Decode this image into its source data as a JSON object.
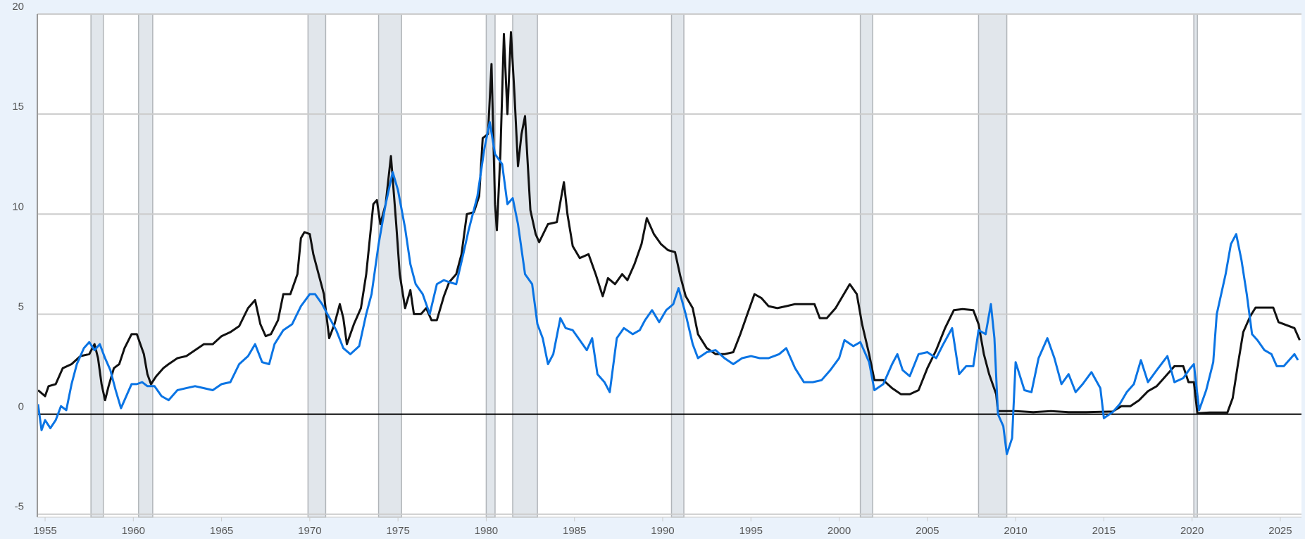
{
  "chart_data": {
    "type": "line",
    "title": "",
    "xlabel": "",
    "ylabel": "",
    "xlim": [
      1954.56,
      2026.2
    ],
    "ylim": [
      -5.15,
      20
    ],
    "grid": true,
    "legend": "none",
    "x_ticks": [
      "1955",
      "1960",
      "1965",
      "1970",
      "1975",
      "1980",
      "1985",
      "1990",
      "1995",
      "2000",
      "2005",
      "2010",
      "2015",
      "2020",
      "2025"
    ],
    "y_ticks": [
      "-5",
      "0",
      "5",
      "10",
      "15",
      "20"
    ],
    "colors": {
      "background": "#eaf2fb",
      "plot": "#ffffff",
      "grid": "#cccccc",
      "recession": "#e1e6eb",
      "zero_line": "#000000"
    },
    "recessions": [
      [
        1957.6,
        1958.3
      ],
      [
        1960.3,
        1961.1
      ],
      [
        1969.9,
        1970.9
      ],
      [
        1973.9,
        1975.2
      ],
      [
        1980.0,
        1980.5
      ],
      [
        1981.5,
        1982.9
      ],
      [
        1990.5,
        1991.2
      ],
      [
        2001.2,
        2001.9
      ],
      [
        2007.9,
        2009.5
      ],
      [
        2020.1,
        2020.3
      ]
    ],
    "series": [
      {
        "color": "#111111",
        "x": [
          1954.6,
          1955.0,
          1955.2,
          1955.6,
          1956,
          1956.5,
          1957,
          1957.5,
          1957.8,
          1958.0,
          1958.2,
          1958.4,
          1958.6,
          1958.9,
          1959.2,
          1959.5,
          1959.9,
          1960.2,
          1960.4,
          1960.6,
          1960.8,
          1961.0,
          1961.3,
          1961.7,
          1962,
          1962.5,
          1963,
          1963.5,
          1964,
          1964.5,
          1965,
          1965.5,
          1966,
          1966.5,
          1966.9,
          1967.2,
          1967.5,
          1967.8,
          1968.2,
          1968.5,
          1968.9,
          1969.3,
          1969.5,
          1969.7,
          1970.0,
          1970.2,
          1970.5,
          1970.8,
          1971.1,
          1971.4,
          1971.7,
          1971.9,
          1972.1,
          1972.5,
          1972.9,
          1973.2,
          1973.6,
          1973.8,
          1974.0,
          1974.3,
          1974.6,
          1974.9,
          1975.1,
          1975.4,
          1975.7,
          1975.9,
          1976.3,
          1976.6,
          1976.9,
          1977.2,
          1977.6,
          1977.9,
          1978.3,
          1978.6,
          1978.9,
          1979.3,
          1979.6,
          1979.8,
          1980.1,
          1980.3,
          1980.5,
          1980.6,
          1980.8,
          1981.0,
          1981.2,
          1981.4,
          1981.6,
          1981.8,
          1982.0,
          1982.2,
          1982.5,
          1982.8,
          1983.0,
          1983.5,
          1984.0,
          1984.4,
          1984.6,
          1984.9,
          1985.3,
          1985.8,
          1986.2,
          1986.6,
          1986.9,
          1987.3,
          1987.7,
          1988.0,
          1988.4,
          1988.8,
          1989.1,
          1989.5,
          1989.9,
          1990.3,
          1990.7,
          1991.0,
          1991.3,
          1991.7,
          1992.0,
          1992.5,
          1993,
          1993.5,
          1994.0,
          1994.4,
          1994.8,
          1995.2,
          1995.6,
          1996.0,
          1996.5,
          1997,
          1997.5,
          1998.0,
          1998.6,
          1998.9,
          1999.3,
          1999.8,
          2000.2,
          2000.6,
          2001.0,
          2001.3,
          2001.7,
          2002.0,
          2002.5,
          2003.0,
          2003.5,
          2004,
          2004.5,
          2005.0,
          2005.5,
          2006.0,
          2006.5,
          2007,
          2007.6,
          2007.9,
          2008.2,
          2008.5,
          2008.9,
          2009.0,
          2010,
          2011,
          2012,
          2013,
          2014,
          2015.5,
          2016,
          2016.5,
          2017,
          2017.5,
          2018,
          2018.5,
          2019.0,
          2019.5,
          2019.8,
          2020.1,
          2020.3,
          2021,
          2022.0,
          2022.3,
          2022.6,
          2022.9,
          2023.3,
          2023.6,
          2024.6,
          2024.9,
          2025.8,
          2026.1
        ],
        "values": [
          1.2,
          0.9,
          1.4,
          1.5,
          2.3,
          2.5,
          2.9,
          3.0,
          3.5,
          2.8,
          1.5,
          0.7,
          1.4,
          2.3,
          2.5,
          3.3,
          4.0,
          4.0,
          3.5,
          3.0,
          2.0,
          1.5,
          1.9,
          2.3,
          2.5,
          2.8,
          2.9,
          3.2,
          3.5,
          3.5,
          3.9,
          4.1,
          4.4,
          5.3,
          5.7,
          4.5,
          3.9,
          4.0,
          4.7,
          6.0,
          6.0,
          7.0,
          8.8,
          9.1,
          9.0,
          8.0,
          7.0,
          6.0,
          3.8,
          4.5,
          5.5,
          4.8,
          3.5,
          4.5,
          5.3,
          7.0,
          10.5,
          10.7,
          9.5,
          10.5,
          12.9,
          9.5,
          7.0,
          5.3,
          6.2,
          5.0,
          5.0,
          5.3,
          4.7,
          4.7,
          5.9,
          6.6,
          7.0,
          8.0,
          10.0,
          10.1,
          10.9,
          13.8,
          14.0,
          17.5,
          10.5,
          9.2,
          13.0,
          19.0,
          15.0,
          19.1,
          16.0,
          12.4,
          14.0,
          14.9,
          10.2,
          9.0,
          8.6,
          9.5,
          9.6,
          11.6,
          10.0,
          8.4,
          7.8,
          8.0,
          7.0,
          5.9,
          6.8,
          6.5,
          7.0,
          6.7,
          7.5,
          8.5,
          9.8,
          9.0,
          8.5,
          8.2,
          8.1,
          6.9,
          5.9,
          5.3,
          4.0,
          3.3,
          3.0,
          3.0,
          3.1,
          4.0,
          5.0,
          6.0,
          5.8,
          5.4,
          5.3,
          5.4,
          5.5,
          5.5,
          5.5,
          4.8,
          4.8,
          5.3,
          5.9,
          6.5,
          6.0,
          4.5,
          3.0,
          1.7,
          1.7,
          1.3,
          1.0,
          1.0,
          1.2,
          2.3,
          3.2,
          4.3,
          5.2,
          5.25,
          5.2,
          4.5,
          3.0,
          2.0,
          1.0,
          0.15,
          0.15,
          0.1,
          0.15,
          0.1,
          0.1,
          0.13,
          0.4,
          0.4,
          0.7,
          1.15,
          1.4,
          1.9,
          2.4,
          2.4,
          1.6,
          1.6,
          0.05,
          0.08,
          0.08,
          0.8,
          2.5,
          4.1,
          4.9,
          5.33,
          5.33,
          4.6,
          4.3,
          3.7
        ]
      },
      {
        "color": "#0a74e4",
        "x": [
          1954.6,
          1954.8,
          1955.0,
          1955.3,
          1955.6,
          1955.9,
          1956.2,
          1956.5,
          1956.8,
          1957.2,
          1957.5,
          1957.8,
          1958.1,
          1958.4,
          1958.7,
          1959.0,
          1959.3,
          1959.6,
          1959.9,
          1960.2,
          1960.5,
          1960.8,
          1961.2,
          1961.6,
          1962.0,
          1962.5,
          1963,
          1963.5,
          1964,
          1964.5,
          1965,
          1965.5,
          1966.0,
          1966.5,
          1966.9,
          1967.3,
          1967.7,
          1968.0,
          1968.5,
          1969,
          1969.5,
          1970.0,
          1970.3,
          1970.7,
          1971.0,
          1971.5,
          1971.9,
          1972.3,
          1972.8,
          1973.2,
          1973.5,
          1973.9,
          1974.3,
          1974.7,
          1975.0,
          1975.4,
          1975.7,
          1976.0,
          1976.4,
          1976.8,
          1977.2,
          1977.6,
          1977.9,
          1978.3,
          1978.7,
          1979.0,
          1979.5,
          1979.9,
          1980.2,
          1980.5,
          1980.9,
          1981.2,
          1981.5,
          1981.8,
          1982.2,
          1982.6,
          1982.9,
          1983.2,
          1983.5,
          1983.8,
          1984.2,
          1984.5,
          1984.9,
          1985.3,
          1985.7,
          1986.0,
          1986.3,
          1986.7,
          1987.0,
          1987.4,
          1987.8,
          1988.3,
          1988.7,
          1989.0,
          1989.4,
          1989.8,
          1990.2,
          1990.6,
          1990.9,
          1991.3,
          1991.7,
          1992.0,
          1992.5,
          1993,
          1993.5,
          1994,
          1994.5,
          1995.0,
          1995.5,
          1996,
          1996.6,
          1997,
          1997.5,
          1998,
          1998.5,
          1999.0,
          1999.5,
          2000.0,
          2000.3,
          2000.8,
          2001.2,
          2001.7,
          2002.0,
          2002.5,
          2003.0,
          2003.3,
          2003.6,
          2004.0,
          2004.5,
          2005.0,
          2005.5,
          2005.9,
          2006.4,
          2006.8,
          2007.2,
          2007.6,
          2007.9,
          2008.3,
          2008.6,
          2008.8,
          2009.0,
          2009.3,
          2009.5,
          2009.8,
          2010.0,
          2010.5,
          2010.9,
          2011.3,
          2011.8,
          2012.2,
          2012.6,
          2013.0,
          2013.4,
          2013.8,
          2014.3,
          2014.8,
          2015.0,
          2015.5,
          2015.9,
          2016.3,
          2016.7,
          2017.1,
          2017.5,
          2018.0,
          2018.6,
          2019.0,
          2019.5,
          2019.9,
          2020.1,
          2020.4,
          2020.8,
          2021.2,
          2021.4,
          2021.9,
          2022.2,
          2022.5,
          2022.8,
          2023.1,
          2023.4,
          2023.7,
          2024.1,
          2024.5,
          2024.8,
          2025.2,
          2025.5,
          2025.8,
          2026.0
        ],
        "values": [
          0.5,
          -0.8,
          -0.3,
          -0.7,
          -0.3,
          0.4,
          0.2,
          1.5,
          2.5,
          3.3,
          3.6,
          3.2,
          3.5,
          2.8,
          2.2,
          1.2,
          0.3,
          0.9,
          1.5,
          1.5,
          1.6,
          1.4,
          1.4,
          0.9,
          0.7,
          1.2,
          1.3,
          1.4,
          1.3,
          1.2,
          1.5,
          1.6,
          2.5,
          2.9,
          3.5,
          2.6,
          2.5,
          3.5,
          4.2,
          4.5,
          5.4,
          6.0,
          6.0,
          5.5,
          5.0,
          4.2,
          3.3,
          3.0,
          3.4,
          5.0,
          6.0,
          8.5,
          10.5,
          12.1,
          11.2,
          9.3,
          7.5,
          6.5,
          6.0,
          5.0,
          6.5,
          6.7,
          6.6,
          6.5,
          8.0,
          9.2,
          10.9,
          13.3,
          14.6,
          13.0,
          12.5,
          10.5,
          10.8,
          9.5,
          7.0,
          6.5,
          4.5,
          3.8,
          2.5,
          3.0,
          4.8,
          4.3,
          4.2,
          3.7,
          3.2,
          3.8,
          2.0,
          1.6,
          1.1,
          3.8,
          4.3,
          4.0,
          4.2,
          4.7,
          5.2,
          4.6,
          5.2,
          5.5,
          6.3,
          5.0,
          3.5,
          2.8,
          3.1,
          3.2,
          2.8,
          2.5,
          2.8,
          2.9,
          2.8,
          2.8,
          3.0,
          3.3,
          2.3,
          1.6,
          1.6,
          1.7,
          2.2,
          2.8,
          3.7,
          3.4,
          3.6,
          2.6,
          1.2,
          1.5,
          2.5,
          3.0,
          2.2,
          1.9,
          3.0,
          3.1,
          2.8,
          3.5,
          4.3,
          2.0,
          2.4,
          2.4,
          4.2,
          4.0,
          5.5,
          3.8,
          0.0,
          -0.6,
          -2.0,
          -1.2,
          2.6,
          1.2,
          1.1,
          2.8,
          3.8,
          2.8,
          1.5,
          2.0,
          1.1,
          1.5,
          2.1,
          1.3,
          -0.2,
          0.1,
          0.5,
          1.1,
          1.5,
          2.7,
          1.6,
          2.2,
          2.9,
          1.6,
          1.8,
          2.3,
          2.5,
          0.2,
          1.2,
          2.6,
          5.0,
          7.0,
          8.5,
          9.0,
          7.7,
          6.0,
          4.0,
          3.7,
          3.2,
          3.0,
          2.4,
          2.4,
          2.7,
          3.0,
          2.7
        ]
      }
    ]
  }
}
